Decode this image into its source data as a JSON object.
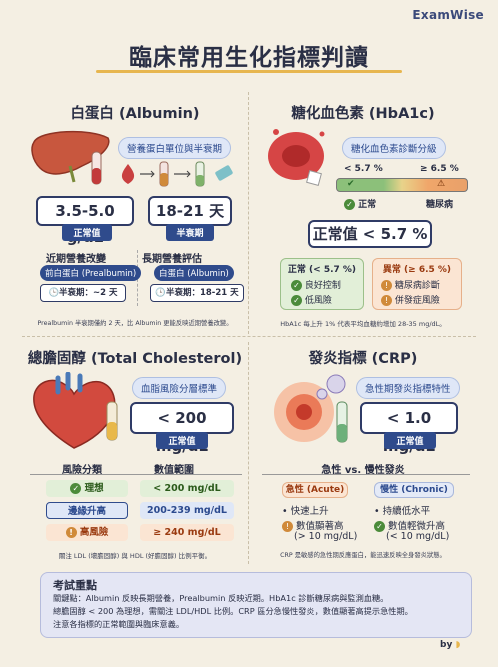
{
  "brand": "ExamWise",
  "title": "臨床常用生化指標判讀",
  "albumin": {
    "heading": "白蛋白 (Albumin)",
    "tag": "營養蛋白單位與半衰期",
    "value": "3.5-5.0 g/dL",
    "value_tag": "正常值",
    "half": "18-21 天",
    "half_tag": "半衰期",
    "short_label": "近期營養改變",
    "long_label": "長期營養評估",
    "pre_pill": "前白蛋白 (Prealbumin)",
    "pre_half": "半衰期：~2 天",
    "alb_pill": "白蛋白 (Albumin)",
    "alb_half": "半衰期：18-21 天",
    "note": "Prealbumin 半衰期僅約 2 天，比 Albumin 更能反映近期營養改變。"
  },
  "hba1c": {
    "heading": "糖化血色素 (HbA1c)",
    "tag": "糖化血色素診斷分級",
    "lt": "< 5.7 %",
    "ge": "≥ 6.5 %",
    "normal_label": "正常",
    "diabetes_label": "糖尿病",
    "value": "正常值 < 5.7 %",
    "g_title": "正常 (< 5.7 %)",
    "g1": "良好控制",
    "g2": "低風險",
    "o_title": "異常 (≥ 6.5 %)",
    "o1": "糖尿病診斷",
    "o2": "併發症風險",
    "note": "HbA1c 每上升 1% 代表平均血糖約增加 28-35 mg/dL。"
  },
  "chol": {
    "heading": "總膽固醇 (Total Cholesterol)",
    "tag": "血脂風險分層標準",
    "value": "< 200 mg/dL",
    "value_tag": "正常值",
    "col1": "風險分類",
    "col2": "數值範圍",
    "rows": [
      {
        "label": "理想",
        "value": "< 200 mg/dL"
      },
      {
        "label": "邊緣升高",
        "value": "200-239 mg/dL"
      },
      {
        "label": "高風險",
        "value": "≥ 240 mg/dL"
      }
    ],
    "note": "關注 LDL (壞膽固醇) 與 HDL (好膽固醇) 比例平衡。"
  },
  "crp": {
    "heading": "發炎指標 (CRP)",
    "tag": "急性期發炎指標特性",
    "value": "< 1.0 mg/dL",
    "value_tag": "正常值",
    "versus": "急性 vs. 慢性發炎",
    "a_title": "急性 (Acute)",
    "a1": "快速上升",
    "a2": "數值顯著高",
    "a2b": "(> 10 mg/dL)",
    "c_title": "慢性 (Chronic)",
    "c1": "持續低水平",
    "c2": "數值輕微升高",
    "c2b": "(< 10 mg/dL)",
    "note": "CRP 是敏感的急性期反應蛋白，能迅速反映全身發炎狀態。"
  },
  "summary": {
    "title": "考試重點",
    "l1": "關鍵點：Albumin 反映長期營養，Prealbumin 反映近期。HbA1c 診斷糖尿病與監測血糖。",
    "l2": "總膽固醇 < 200 為理想，需關注 LDL/HDL 比例。CRP 區分急慢性發炎，數值顯著高提示急性期。",
    "l3": "注意各指標的正常範圍與臨床意義。"
  },
  "byline": "by",
  "colors": {
    "navy": "#2f4b8c",
    "green": "#7fb26a",
    "orange": "#e9a16a",
    "red": "#d9534f",
    "gold": "#e7b64f"
  }
}
